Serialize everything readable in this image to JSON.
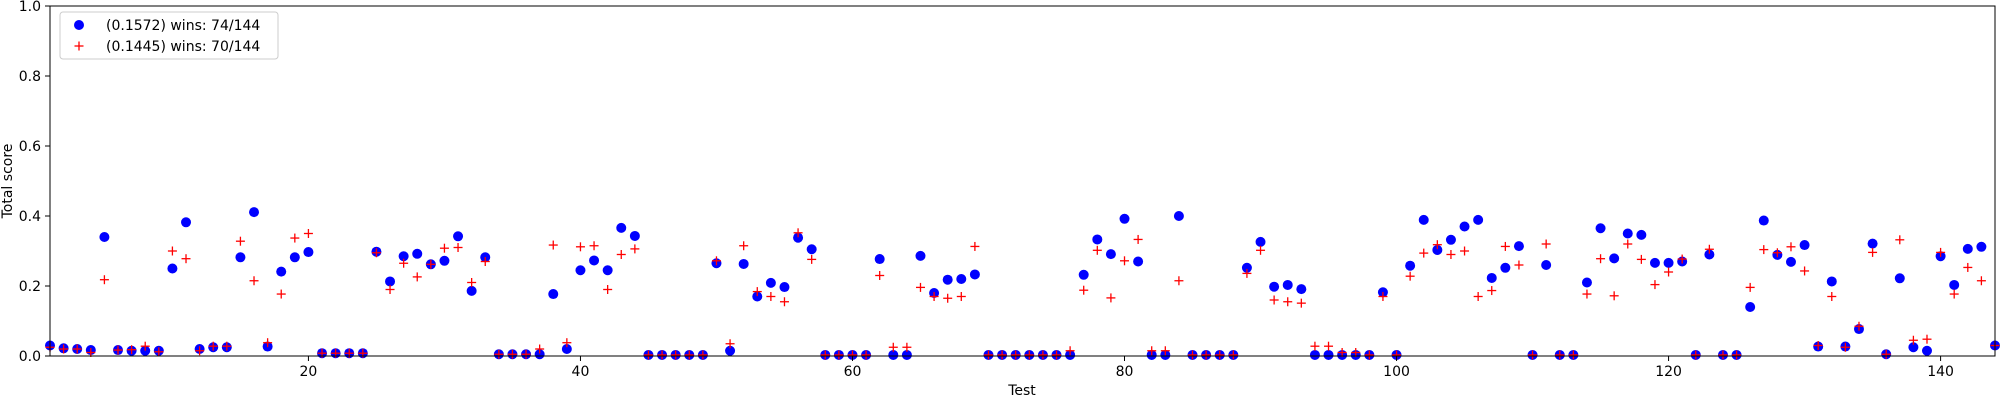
{
  "chart_data": {
    "type": "scatter",
    "title": "",
    "xlabel": "Test",
    "ylabel": "Total score",
    "xlim": [
      1,
      144
    ],
    "ylim": [
      0,
      1.0
    ],
    "xticks": [
      20,
      40,
      60,
      80,
      100,
      120,
      140
    ],
    "xtick_labels": [
      "20",
      "40",
      "60",
      "80",
      "100",
      "120",
      "140"
    ],
    "yticks": [
      0,
      0.2,
      0.4,
      0.6,
      0.8,
      1.0
    ],
    "ytick_labels": [
      "0.0",
      "0.2",
      "0.4",
      "0.6",
      "0.8",
      "1.0"
    ],
    "grid": false,
    "legend": "top-left",
    "series": [
      {
        "name": "(0.1572) wins: 74/144",
        "marker": "circle",
        "color": "#0000ff",
        "x": [
          1,
          2,
          3,
          4,
          5,
          6,
          7,
          8,
          9,
          10,
          11,
          12,
          13,
          14,
          15,
          16,
          17,
          18,
          19,
          20,
          21,
          22,
          23,
          24,
          25,
          26,
          27,
          28,
          29,
          30,
          31,
          32,
          33,
          34,
          35,
          36,
          37,
          38,
          39,
          40,
          41,
          42,
          43,
          44,
          45,
          46,
          47,
          48,
          49,
          50,
          51,
          52,
          53,
          54,
          55,
          56,
          57,
          58,
          59,
          60,
          61,
          62,
          63,
          64,
          65,
          66,
          67,
          68,
          69,
          70,
          71,
          72,
          73,
          74,
          75,
          76,
          77,
          78,
          79,
          80,
          81,
          82,
          83,
          84,
          85,
          86,
          87,
          88,
          89,
          90,
          91,
          92,
          93,
          94,
          95,
          96,
          97,
          98,
          99,
          100,
          101,
          102,
          103,
          104,
          105,
          106,
          107,
          108,
          109,
          110,
          111,
          112,
          113,
          114,
          115,
          116,
          117,
          118,
          119,
          120,
          121,
          122,
          123,
          124,
          125,
          126,
          127,
          128,
          129,
          130,
          131,
          132,
          133,
          134,
          135,
          136,
          137,
          138,
          139,
          140,
          141,
          142,
          143,
          144
        ],
        "y": [
          0.03,
          0.022,
          0.02,
          0.017,
          0.34,
          0.017,
          0.015,
          0.015,
          0.015,
          0.25,
          0.382,
          0.02,
          0.025,
          0.025,
          0.282,
          0.411,
          0.027,
          0.241,
          0.282,
          0.297,
          0.008,
          0.008,
          0.008,
          0.008,
          0.298,
          0.213,
          0.285,
          0.292,
          0.262,
          0.272,
          0.342,
          0.186,
          0.282,
          0.005,
          0.005,
          0.005,
          0.005,
          0.177,
          0.02,
          0.245,
          0.273,
          0.245,
          0.366,
          0.343,
          0.003,
          0.003,
          0.003,
          0.003,
          0.003,
          0.265,
          0.015,
          0.263,
          0.17,
          0.209,
          0.197,
          0.338,
          0.305,
          0.003,
          0.003,
          0.003,
          0.003,
          0.277,
          0.003,
          0.003,
          0.286,
          0.18,
          0.218,
          0.22,
          0.233,
          0.003,
          0.003,
          0.003,
          0.003,
          0.003,
          0.003,
          0.003,
          0.232,
          0.333,
          0.291,
          0.392,
          0.27,
          0.003,
          0.003,
          0.4,
          0.003,
          0.003,
          0.003,
          0.003,
          0.252,
          0.326,
          0.198,
          0.203,
          0.191,
          0.003,
          0.003,
          0.003,
          0.003,
          0.003,
          0.182,
          0.003,
          0.258,
          0.389,
          0.303,
          0.332,
          0.37,
          0.389,
          0.223,
          0.252,
          0.314,
          0.003,
          0.26,
          0.003,
          0.003,
          0.21,
          0.365,
          0.279,
          0.35,
          0.346,
          0.266,
          0.266,
          0.27,
          0.003,
          0.29,
          0.003,
          0.003,
          0.14,
          0.387,
          0.289,
          0.269,
          0.317,
          0.027,
          0.213,
          0.027,
          0.077,
          0.321,
          0.005,
          0.222,
          0.025,
          0.015,
          0.285,
          0.203,
          0.306,
          0.312,
          0.03
        ]
      },
      {
        "name": "(0.1445) wins: 70/144",
        "marker": "plus",
        "color": "#ff0000",
        "x": [
          1,
          2,
          3,
          4,
          5,
          6,
          7,
          8,
          9,
          10,
          11,
          12,
          13,
          14,
          15,
          16,
          17,
          18,
          19,
          20,
          21,
          22,
          23,
          24,
          25,
          26,
          27,
          28,
          29,
          30,
          31,
          32,
          33,
          34,
          35,
          36,
          37,
          38,
          39,
          40,
          41,
          42,
          43,
          44,
          45,
          46,
          47,
          48,
          49,
          50,
          51,
          52,
          53,
          54,
          55,
          56,
          57,
          58,
          59,
          60,
          61,
          62,
          63,
          64,
          65,
          66,
          67,
          68,
          69,
          70,
          71,
          72,
          73,
          74,
          75,
          76,
          77,
          78,
          79,
          80,
          81,
          82,
          83,
          84,
          85,
          86,
          87,
          88,
          89,
          90,
          91,
          92,
          93,
          94,
          95,
          96,
          97,
          98,
          99,
          100,
          101,
          102,
          103,
          104,
          105,
          106,
          107,
          108,
          109,
          110,
          111,
          112,
          113,
          114,
          115,
          116,
          117,
          118,
          119,
          120,
          121,
          122,
          123,
          124,
          125,
          126,
          127,
          128,
          129,
          130,
          131,
          132,
          133,
          134,
          135,
          136,
          137,
          138,
          139,
          140,
          141,
          142,
          143,
          144
        ],
        "y": [
          0.025,
          0.02,
          0.02,
          0.01,
          0.218,
          0.017,
          0.018,
          0.028,
          0.012,
          0.3,
          0.278,
          0.015,
          0.028,
          0.028,
          0.328,
          0.215,
          0.038,
          0.177,
          0.337,
          0.35,
          0.008,
          0.008,
          0.008,
          0.008,
          0.295,
          0.19,
          0.265,
          0.226,
          0.262,
          0.308,
          0.31,
          0.21,
          0.27,
          0.005,
          0.005,
          0.005,
          0.02,
          0.317,
          0.038,
          0.312,
          0.315,
          0.19,
          0.29,
          0.306,
          0.003,
          0.003,
          0.003,
          0.003,
          0.003,
          0.272,
          0.035,
          0.315,
          0.184,
          0.17,
          0.155,
          0.352,
          0.276,
          0.003,
          0.003,
          0.003,
          0.003,
          0.23,
          0.025,
          0.025,
          0.196,
          0.17,
          0.165,
          0.17,
          0.313,
          0.003,
          0.003,
          0.003,
          0.003,
          0.003,
          0.003,
          0.015,
          0.188,
          0.302,
          0.166,
          0.272,
          0.333,
          0.015,
          0.015,
          0.215,
          0.003,
          0.003,
          0.003,
          0.003,
          0.236,
          0.302,
          0.16,
          0.155,
          0.151,
          0.028,
          0.028,
          0.01,
          0.01,
          0.003,
          0.17,
          0.003,
          0.228,
          0.294,
          0.318,
          0.29,
          0.3,
          0.17,
          0.187,
          0.313,
          0.26,
          0.003,
          0.32,
          0.003,
          0.003,
          0.177,
          0.278,
          0.172,
          0.32,
          0.276,
          0.204,
          0.24,
          0.277,
          0.003,
          0.305,
          0.003,
          0.003,
          0.196,
          0.304,
          0.295,
          0.312,
          0.243,
          0.03,
          0.17,
          0.025,
          0.085,
          0.296,
          0.005,
          0.332,
          0.045,
          0.048,
          0.296,
          0.177,
          0.253,
          0.215,
          0.03
        ]
      }
    ]
  }
}
